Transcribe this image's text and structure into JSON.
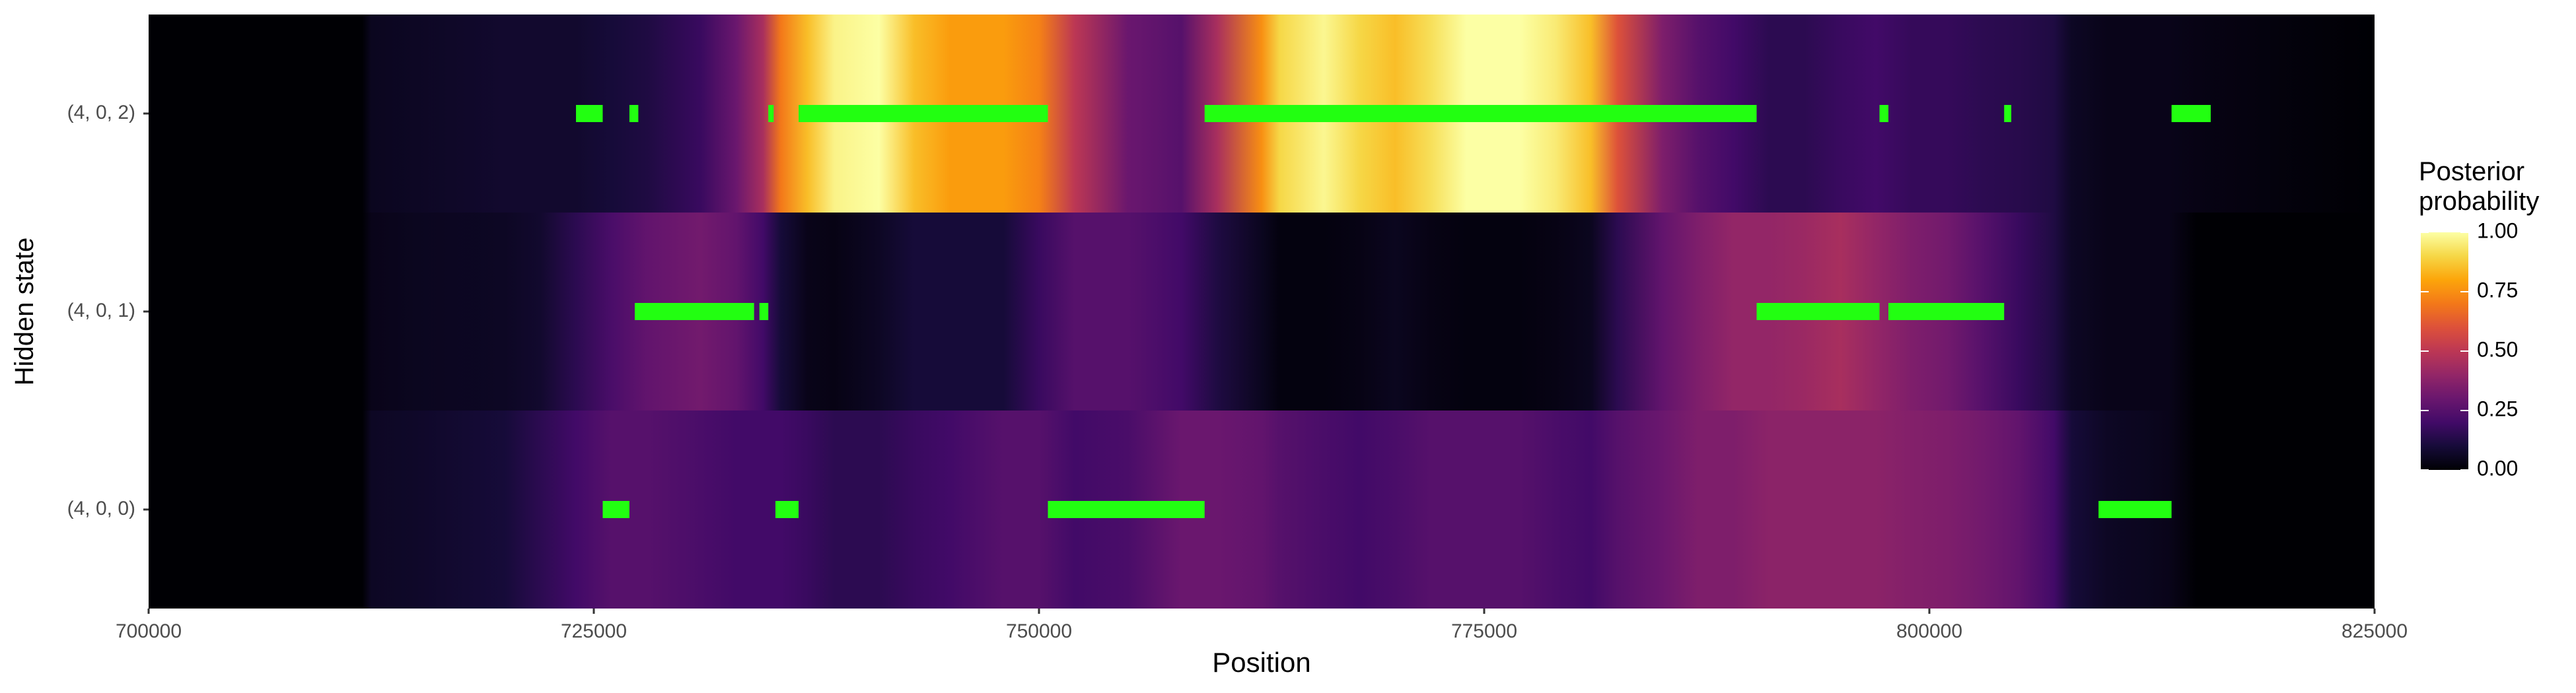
{
  "chart_data": {
    "type": "heatmap",
    "xlabel": "Position",
    "ylabel": "Hidden state",
    "xlim": [
      700000,
      825000
    ],
    "x_ticks": [
      700000,
      725000,
      750000,
      775000,
      800000,
      825000
    ],
    "x_tick_labels": [
      "700000",
      "725000",
      "750000",
      "775000",
      "800000",
      "825000"
    ],
    "rows": [
      "(4, 0, 0)",
      "(4, 0, 1)",
      "(4, 0, 2)"
    ],
    "legend": {
      "title_line1": "Posterior",
      "title_line2": "probability",
      "ticks": [
        1.0,
        0.75,
        0.5,
        0.25,
        0.0
      ],
      "tick_labels": [
        "1.00",
        "0.75",
        "0.50",
        "0.25",
        "0.00"
      ],
      "placement": "right"
    },
    "colormap": "inferno",
    "heat_columns": {
      "x": [
        700000,
        712000,
        712500,
        715000,
        720000,
        722000,
        724000,
        726000,
        728000,
        731000,
        733000,
        734500,
        735500,
        737000,
        738500,
        741000,
        743000,
        745000,
        748000,
        750000,
        752000,
        755000,
        758000,
        760000,
        762500,
        763500,
        766000,
        768000,
        770000,
        772000,
        774000,
        777000,
        779000,
        781000,
        782500,
        785000,
        787000,
        789000,
        791000,
        793000,
        795000,
        797000,
        799000,
        801000,
        803000,
        805000,
        807000,
        808000,
        810000,
        812000,
        813500,
        815000,
        825000
      ],
      "state_4_0_2": [
        0.0,
        0.0,
        0.05,
        0.06,
        0.08,
        0.08,
        0.08,
        0.1,
        0.12,
        0.18,
        0.3,
        0.45,
        0.7,
        0.85,
        0.97,
        1.0,
        0.85,
        0.78,
        0.78,
        0.72,
        0.5,
        0.3,
        0.25,
        0.45,
        0.75,
        0.9,
        0.98,
        0.9,
        0.85,
        0.92,
        1.0,
        1.0,
        0.95,
        0.85,
        0.6,
        0.35,
        0.25,
        0.2,
        0.15,
        0.15,
        0.18,
        0.2,
        0.17,
        0.17,
        0.15,
        0.14,
        0.12,
        0.06,
        0.04,
        0.04,
        0.04,
        0.03,
        0.0
      ],
      "state_4_0_1": [
        0.0,
        0.0,
        0.04,
        0.05,
        0.06,
        0.08,
        0.15,
        0.22,
        0.28,
        0.32,
        0.28,
        0.2,
        0.1,
        0.04,
        0.03,
        0.06,
        0.1,
        0.1,
        0.1,
        0.18,
        0.25,
        0.25,
        0.2,
        0.12,
        0.05,
        0.02,
        0.02,
        0.03,
        0.05,
        0.03,
        0.02,
        0.02,
        0.03,
        0.05,
        0.15,
        0.28,
        0.35,
        0.4,
        0.4,
        0.42,
        0.45,
        0.4,
        0.35,
        0.32,
        0.25,
        0.18,
        0.12,
        0.06,
        0.04,
        0.04,
        0.04,
        0.0,
        0.0
      ],
      "state_4_0_0": [
        0.0,
        0.0,
        0.06,
        0.07,
        0.1,
        0.15,
        0.2,
        0.25,
        0.25,
        0.22,
        0.2,
        0.2,
        0.2,
        0.18,
        0.15,
        0.15,
        0.18,
        0.2,
        0.25,
        0.25,
        0.2,
        0.22,
        0.3,
        0.3,
        0.28,
        0.25,
        0.22,
        0.2,
        0.22,
        0.25,
        0.25,
        0.25,
        0.22,
        0.2,
        0.25,
        0.3,
        0.35,
        0.35,
        0.38,
        0.38,
        0.38,
        0.38,
        0.36,
        0.35,
        0.32,
        0.28,
        0.2,
        0.1,
        0.06,
        0.05,
        0.04,
        0.0,
        0.0
      ]
    },
    "highlight_color": "#22ff11",
    "highlights": {
      "state_4_0_2": [
        [
          724000,
          725500
        ],
        [
          727000,
          727500
        ],
        [
          734800,
          735100
        ],
        [
          736500,
          750500
        ],
        [
          759300,
          790300
        ],
        [
          797200,
          797700
        ],
        [
          804200,
          804600
        ],
        [
          813600,
          815800
        ]
      ],
      "state_4_0_1": [
        [
          727300,
          734000
        ],
        [
          734300,
          734800
        ],
        [
          790300,
          797200
        ],
        [
          797700,
          804200
        ]
      ],
      "state_4_0_0": [
        [
          725500,
          727000
        ],
        [
          735200,
          736500
        ],
        [
          750500,
          759300
        ],
        [
          809500,
          813600
        ]
      ]
    }
  }
}
